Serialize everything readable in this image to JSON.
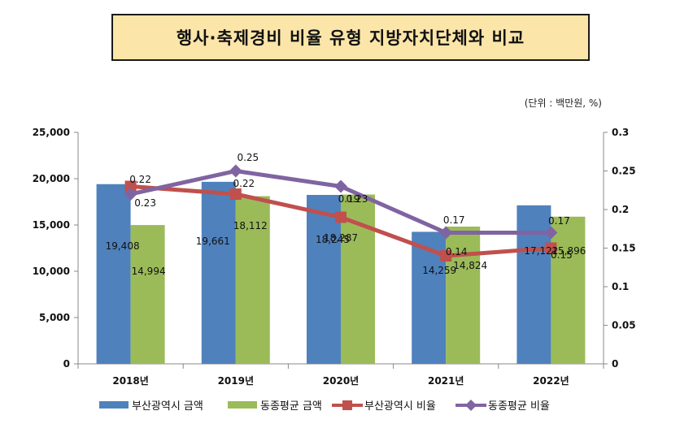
{
  "unit_note": "(단위 : 백만원, %)",
  "chart_data": {
    "type": "bar",
    "title": "행사·축제경비 비율 유형 지방자치단체와 비교",
    "categories": [
      "2018년",
      "2019년",
      "2020년",
      "2021년",
      "2022년"
    ],
    "left_axis": {
      "ylim": [
        0,
        25000
      ],
      "ticks": [
        "0",
        "5,000",
        "10,000",
        "15,000",
        "20,000",
        "25,000"
      ]
    },
    "right_axis": {
      "ylim": [
        0,
        0.3
      ],
      "ticks": [
        "0",
        "0.05",
        "0.1",
        "0.15",
        "0.2",
        "0.25",
        "0.3"
      ]
    },
    "series": [
      {
        "name": "부산광역시 금액",
        "kind": "bar",
        "axis": "left",
        "color": "#4f81bd",
        "values": [
          19408,
          19661,
          18245,
          14259,
          17122
        ],
        "labels": [
          "19,408",
          "19,661",
          "18,245",
          "14,259",
          "17,122"
        ]
      },
      {
        "name": "동종평균 금액",
        "kind": "bar",
        "axis": "left",
        "color": "#9bbb59",
        "values": [
          14994,
          18112,
          18287,
          14824,
          15896
        ],
        "labels": [
          "14,994",
          "18,112",
          "18,287",
          "14,824",
          "15,896"
        ]
      },
      {
        "name": "부산광역시 비율",
        "kind": "line",
        "axis": "right",
        "color": "#c0504d",
        "marker": "square",
        "values": [
          0.23,
          0.22,
          0.19,
          0.14,
          0.15
        ],
        "labels": [
          "0.23",
          "0.22",
          "0.19",
          "0.14",
          "0.15"
        ]
      },
      {
        "name": "동종평균 비율",
        "kind": "line",
        "axis": "right",
        "color": "#8064a2",
        "marker": "diamond",
        "values": [
          0.22,
          0.25,
          0.23,
          0.17,
          0.17
        ],
        "labels": [
          "0.22",
          "0.25",
          "0.23",
          "0.17",
          "0.17"
        ]
      }
    ]
  }
}
